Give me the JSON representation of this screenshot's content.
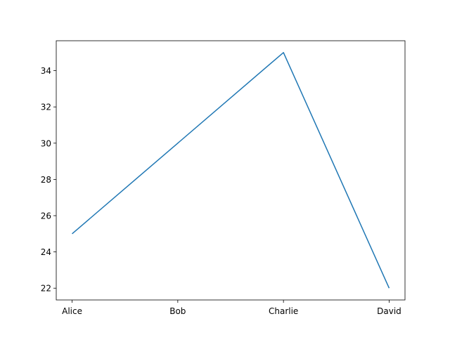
{
  "chart_data": {
    "type": "line",
    "title": "",
    "xlabel": "",
    "ylabel": "",
    "categories": [
      "Alice",
      "Bob",
      "Charlie",
      "David"
    ],
    "series": [
      {
        "values": [
          25,
          30,
          35,
          22
        ],
        "color": "#1f77b4"
      }
    ],
    "ylim": [
      21.35,
      35.65
    ],
    "yticks": [
      22,
      24,
      26,
      28,
      30,
      32,
      34
    ],
    "grid": false,
    "legend": "none"
  }
}
